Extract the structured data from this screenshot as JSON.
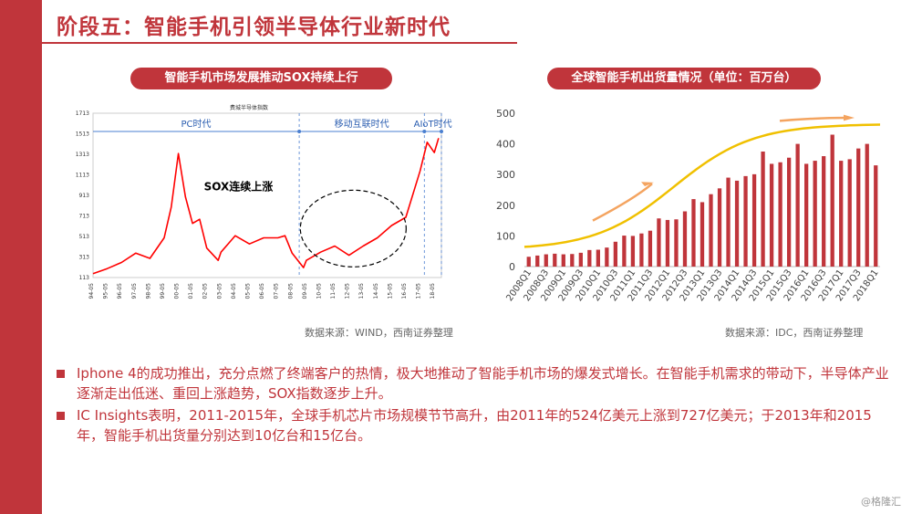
{
  "slide": {
    "title": "阶段五：智能手机引领半导体行业新时代",
    "left_panel_title": "智能手机市场发展推动SOX持续上行",
    "right_panel_title": "全球智能手机出货量情况（单位：百万台）",
    "left_source": "数据来源：WIND，西南证券整理",
    "right_source": "数据来源：IDC，西南证券整理",
    "bullets": [
      "Iphone 4的成功推出，充分点燃了终端客户的热情，极大地推动了智能手机市场的爆发式增长。在智能手机需求的带动下，半导体产业逐渐走出低迷、重回上涨趋势，SOX指数逐步上升。",
      "IC Insights表明，2011-2015年，全球手机芯片市场规模节节高升，由2011年的524亿美元上涨到727亿美元；于2013年和2015年，智能手机出货量分别达到10亿台和15亿台。"
    ],
    "watermark": "@格隆汇",
    "accent": "#c0353b"
  },
  "chart_data": [
    {
      "type": "line",
      "title": "费城半导体指数",
      "ylim": [
        113,
        1713
      ],
      "yticks": [
        113,
        313,
        513,
        713,
        913,
        1113,
        1313,
        1513,
        1713
      ],
      "xticks": [
        "94-05",
        "95-05",
        "96-05",
        "97-05",
        "98-05",
        "99-05",
        "00-05",
        "01-05",
        "02-05",
        "03-05",
        "04-05",
        "05-05",
        "06-05",
        "07-05",
        "08-05",
        "09-05",
        "10-05",
        "11-05",
        "12-05",
        "13-05",
        "14-05",
        "15-05",
        "16-05",
        "17-05",
        "18-05"
      ],
      "x": [
        1994,
        1995,
        1996,
        1997,
        1998,
        1999,
        1999.5,
        2000,
        2000.5,
        2001,
        2001.5,
        2002,
        2002.8,
        2003,
        2004,
        2005,
        2006,
        2007,
        2007.5,
        2008,
        2008.8,
        2009,
        2010,
        2011,
        2012,
        2013,
        2014,
        2015,
        2016,
        2017,
        2017.5,
        2018,
        2018.3
      ],
      "values": [
        150,
        200,
        260,
        350,
        300,
        500,
        800,
        1320,
        900,
        640,
        680,
        400,
        280,
        360,
        520,
        440,
        500,
        500,
        520,
        350,
        210,
        280,
        360,
        420,
        330,
        420,
        500,
        620,
        700,
        1150,
        1430,
        1330,
        1470
      ],
      "series_color": "#ff0000",
      "eras": [
        {
          "label": "PC时代",
          "from": 1994,
          "to": 2008.5
        },
        {
          "label": "移动互联时代",
          "from": 2008.5,
          "to": 2017.3
        },
        {
          "label": "AIoT时代",
          "from": 2017.3,
          "to": 2018.5
        }
      ],
      "annotation": "SOX连续上涨"
    },
    {
      "type": "bar",
      "ylim": [
        0,
        500
      ],
      "yticks": [
        0,
        100,
        200,
        300,
        400,
        500
      ],
      "categories": [
        "2008Q1",
        "2008Q2",
        "2008Q3",
        "2008Q4",
        "2009Q1",
        "2009Q2",
        "2009Q3",
        "2009Q4",
        "2010Q1",
        "2010Q2",
        "2010Q3",
        "2010Q4",
        "2011Q1",
        "2011Q2",
        "2011Q3",
        "2011Q4",
        "2012Q1",
        "2012Q2",
        "2012Q3",
        "2012Q4",
        "2013Q1",
        "2013Q2",
        "2013Q3",
        "2013Q4",
        "2014Q1",
        "2014Q2",
        "2014Q3",
        "2014Q4",
        "2015Q1",
        "2015Q2",
        "2015Q3",
        "2015Q4",
        "2016Q1",
        "2016Q2",
        "2016Q3",
        "2016Q4",
        "2017Q1",
        "2017Q2",
        "2017Q3",
        "2017Q4",
        "2018Q1"
      ],
      "xtick_labels": [
        "2008Q1",
        "2008Q3",
        "2009Q1",
        "2009Q3",
        "2010Q1",
        "2010Q3",
        "2011Q1",
        "2011Q3",
        "2012Q1",
        "2012Q3",
        "2013Q1",
        "2013Q3",
        "2014Q1",
        "2014Q3",
        "2015Q1",
        "2015Q3",
        "2016Q1",
        "2016Q3",
        "2017Q1",
        "2017Q3",
        "2018Q1"
      ],
      "values": [
        32,
        36,
        40,
        42,
        40,
        41,
        45,
        54,
        55,
        62,
        81,
        101,
        100,
        108,
        117,
        157,
        152,
        154,
        180,
        220,
        210,
        236,
        255,
        290,
        280,
        295,
        301,
        375,
        335,
        340,
        355,
        400,
        335,
        345,
        360,
        430,
        345,
        350,
        385,
        400,
        330
      ],
      "bar_color": "#c0353b",
      "trend_color": "#f0c000",
      "arrow_color": "#f4a460"
    }
  ]
}
